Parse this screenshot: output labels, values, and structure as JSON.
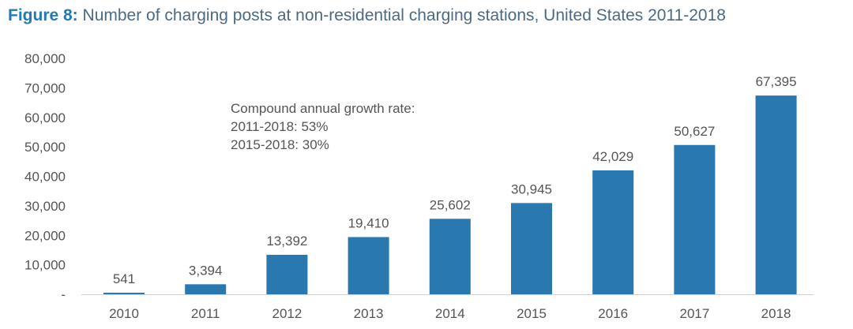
{
  "chart_data": {
    "type": "bar",
    "title_prefix": "Figure 8:",
    "title": "Number of charging posts at non-residential charging stations, United States 2011-2018",
    "categories": [
      "2010",
      "2011",
      "2012",
      "2013",
      "2014",
      "2015",
      "2016",
      "2017",
      "2018"
    ],
    "values": [
      541,
      3394,
      13392,
      19410,
      25602,
      30945,
      42029,
      50627,
      67395
    ],
    "value_labels": [
      "541",
      "3,394",
      "13,392",
      "19,410",
      "25,602",
      "30,945",
      "42,029",
      "50,627",
      "67,395"
    ],
    "ylim": [
      0,
      80000
    ],
    "y_ticks": [
      0,
      10000,
      20000,
      30000,
      40000,
      50000,
      60000,
      70000,
      80000
    ],
    "y_tick_labels": [
      "-",
      "10,000",
      "20,000",
      "30,000",
      "40,000",
      "50,000",
      "60,000",
      "70,000",
      "80,000"
    ],
    "annotation": [
      "Compound annual growth rate:",
      "2011-2018: 53%",
      "2015-2018: 30%"
    ],
    "bar_color": "#2a78b0",
    "grid": false,
    "xlabel": "",
    "ylabel": ""
  }
}
